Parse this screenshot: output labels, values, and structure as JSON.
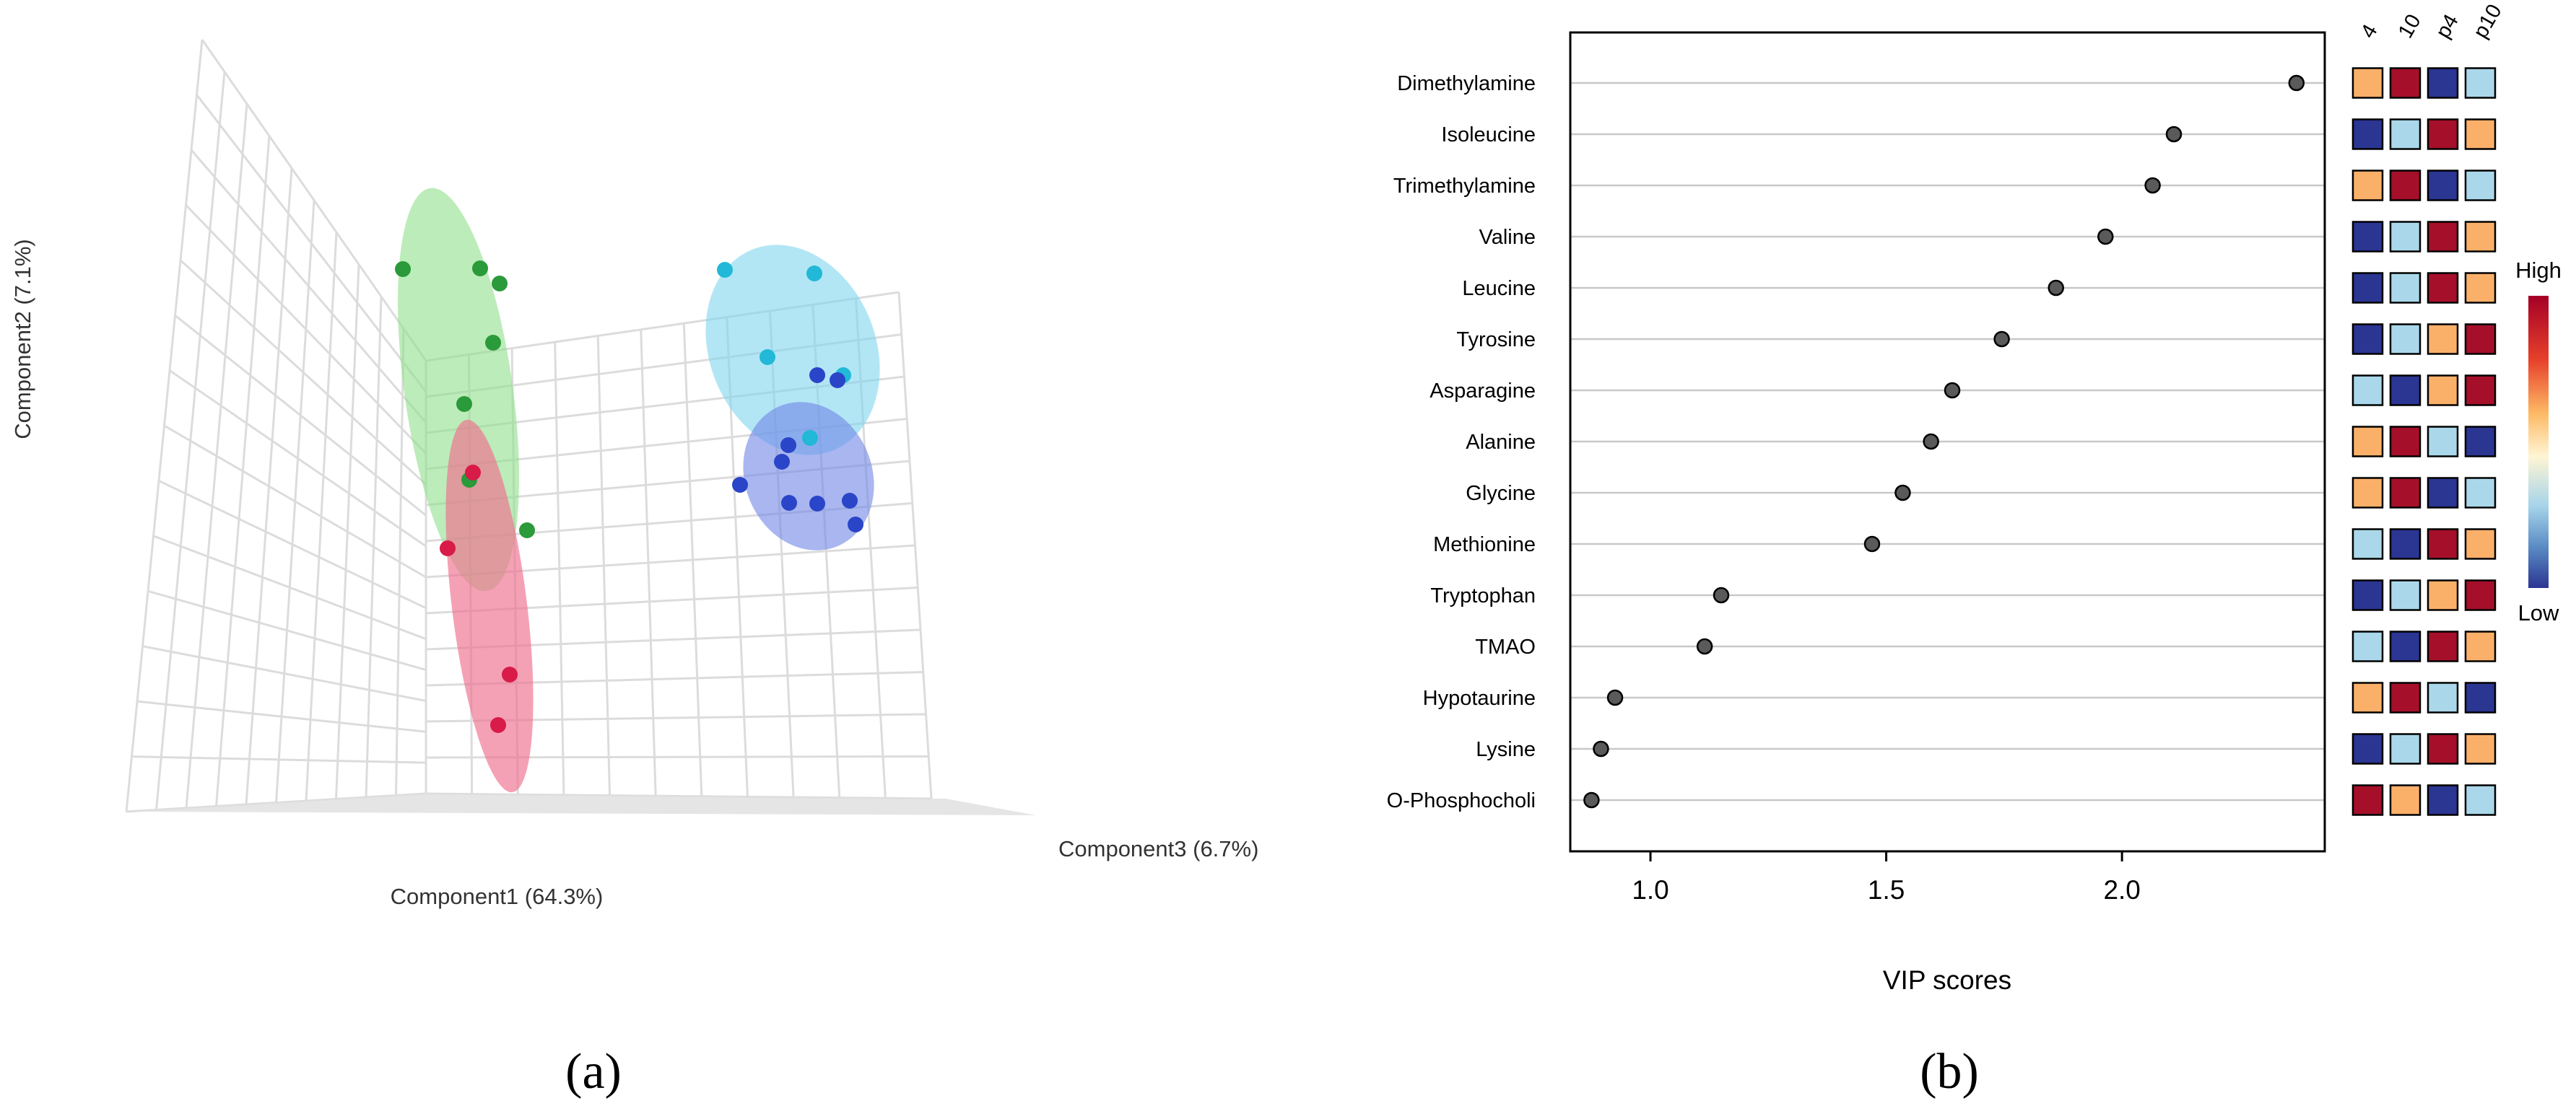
{
  "panel_labels": {
    "a": "(a)",
    "b": "(b)"
  },
  "chart_data": [
    {
      "type": "scatter",
      "subtype": "3d-pls-da-scores",
      "xlabel": "Component1 (64.3%)",
      "ylabel": "Component2 (7.1%)",
      "zlabel": "Component3 (6.7%)",
      "groups": [
        {
          "name": "green",
          "color": "#2a9a3a",
          "ellipse_color": "#8fe08a"
        },
        {
          "name": "red",
          "color": "#d81b48",
          "ellipse_color": "#f06e8e"
        },
        {
          "name": "cyan",
          "color": "#22b8d8",
          "ellipse_color": "#7fd6ee"
        },
        {
          "name": "blue",
          "color": "#2a45c8",
          "ellipse_color": "#6f86e6"
        }
      ]
    },
    {
      "type": "scatter",
      "subtype": "vip-dot-plot",
      "xlabel": "VIP scores",
      "xlim": [
        0.83,
        2.43
      ],
      "xticks": [
        "1.0",
        "1.5",
        "2.0"
      ],
      "xtick_values": [
        1.0,
        1.5,
        2.0
      ],
      "categories": [
        "Dimethylamine",
        "Isoleucine",
        "Trimethylamine",
        "Valine",
        "Leucine",
        "Tyrosine",
        "Asparagine",
        "Alanine",
        "Glycine",
        "Methionine",
        "Tryptophan",
        "TMAO",
        "Hypotaurine",
        "Lysine",
        "O-Phosphocholi"
      ],
      "values": [
        2.37,
        2.11,
        2.065,
        1.965,
        1.86,
        1.745,
        1.64,
        1.595,
        1.535,
        1.47,
        1.15,
        1.115,
        0.925,
        0.895,
        0.875
      ],
      "heatmap": {
        "columns": [
          "4",
          "10",
          "p4",
          "p10"
        ],
        "rows": [
          [
            "orange",
            "darkred",
            "navy",
            "lightblue"
          ],
          [
            "navy",
            "lightblue",
            "darkred",
            "orange"
          ],
          [
            "orange",
            "darkred",
            "navy",
            "lightblue"
          ],
          [
            "navy",
            "lightblue",
            "darkred",
            "orange"
          ],
          [
            "navy",
            "lightblue",
            "darkred",
            "orange"
          ],
          [
            "navy",
            "lightblue",
            "orange",
            "darkred"
          ],
          [
            "lightblue",
            "navy",
            "orange",
            "darkred"
          ],
          [
            "orange",
            "darkred",
            "lightblue",
            "navy"
          ],
          [
            "orange",
            "darkred",
            "navy",
            "lightblue"
          ],
          [
            "lightblue",
            "navy",
            "darkred",
            "orange"
          ],
          [
            "navy",
            "lightblue",
            "orange",
            "darkred"
          ],
          [
            "lightblue",
            "navy",
            "darkred",
            "orange"
          ],
          [
            "orange",
            "darkred",
            "lightblue",
            "navy"
          ],
          [
            "navy",
            "lightblue",
            "darkred",
            "orange"
          ],
          [
            "darkred",
            "orange",
            "navy",
            "lightblue"
          ]
        ],
        "palette": {
          "darkred": "#a50f2a",
          "orange": "#fbb06a",
          "lightblue": "#aad8ea",
          "navy": "#2b3592"
        }
      },
      "legend": {
        "high": "High",
        "low": "Low"
      }
    }
  ]
}
